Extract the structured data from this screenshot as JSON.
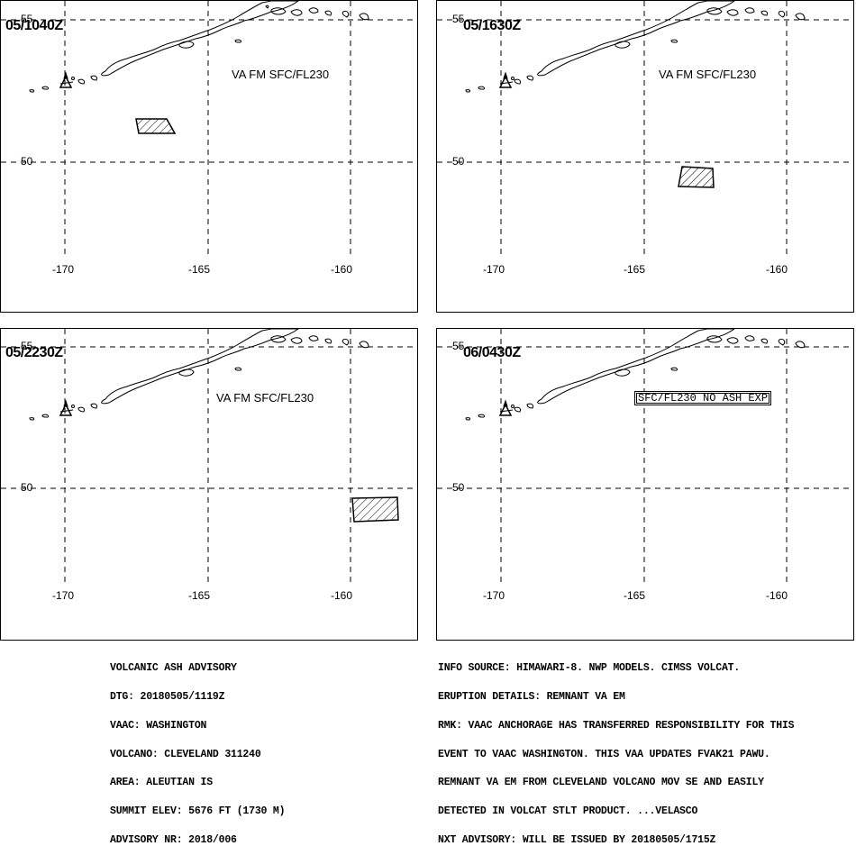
{
  "panels": [
    {
      "time": "05/1040Z",
      "va_label": "VA FM SFC/FL230",
      "box_label": ""
    },
    {
      "time": "05/1630Z",
      "va_label": "VA FM SFC/FL230",
      "box_label": ""
    },
    {
      "time": "05/2230Z",
      "va_label": "VA FM SFC/FL230",
      "box_label": ""
    },
    {
      "time": "06/0430Z",
      "va_label": "",
      "box_label": "SFC/FL230 NO ASH EXP"
    }
  ],
  "grid": {
    "lat_labels": [
      "55",
      "50"
    ],
    "lon_labels": [
      "-170",
      "-165",
      "-160"
    ]
  },
  "advisory_left": [
    "VOLCANIC ASH ADVISORY",
    "DTG: 20180505/1119Z",
    "VAAC: WASHINGTON",
    "VOLCANO: CLEVELAND 311240",
    "AREA: ALEUTIAN IS",
    "SUMMIT ELEV: 5676 FT (1730 M)",
    "ADVISORY NR: 2018/006"
  ],
  "advisory_right": [
    "INFO SOURCE: HIMAWARI-8. NWP MODELS. CIMSS VOLCAT.",
    "ERUPTION DETAILS: REMNANT VA EM",
    "RMK: VAAC ANCHORAGE HAS TRANSFERRED RESPONSIBILITY FOR THIS",
    "EVENT TO VAAC WASHINGTON. THIS VAA UPDATES FVAK21 PAWU.",
    "REMNANT VA EM FROM CLEVELAND VOLCANO MOV SE AND EASILY",
    "DETECTED IN VOLCAT STLT PRODUCT. ...VELASCO",
    "NXT ADVISORY: WILL BE ISSUED BY 20180505/1715Z"
  ],
  "colors": {
    "line": "#000000",
    "background": "#ffffff"
  },
  "icons": [
    "volcano-icon",
    "ash-cloud-polygon"
  ]
}
